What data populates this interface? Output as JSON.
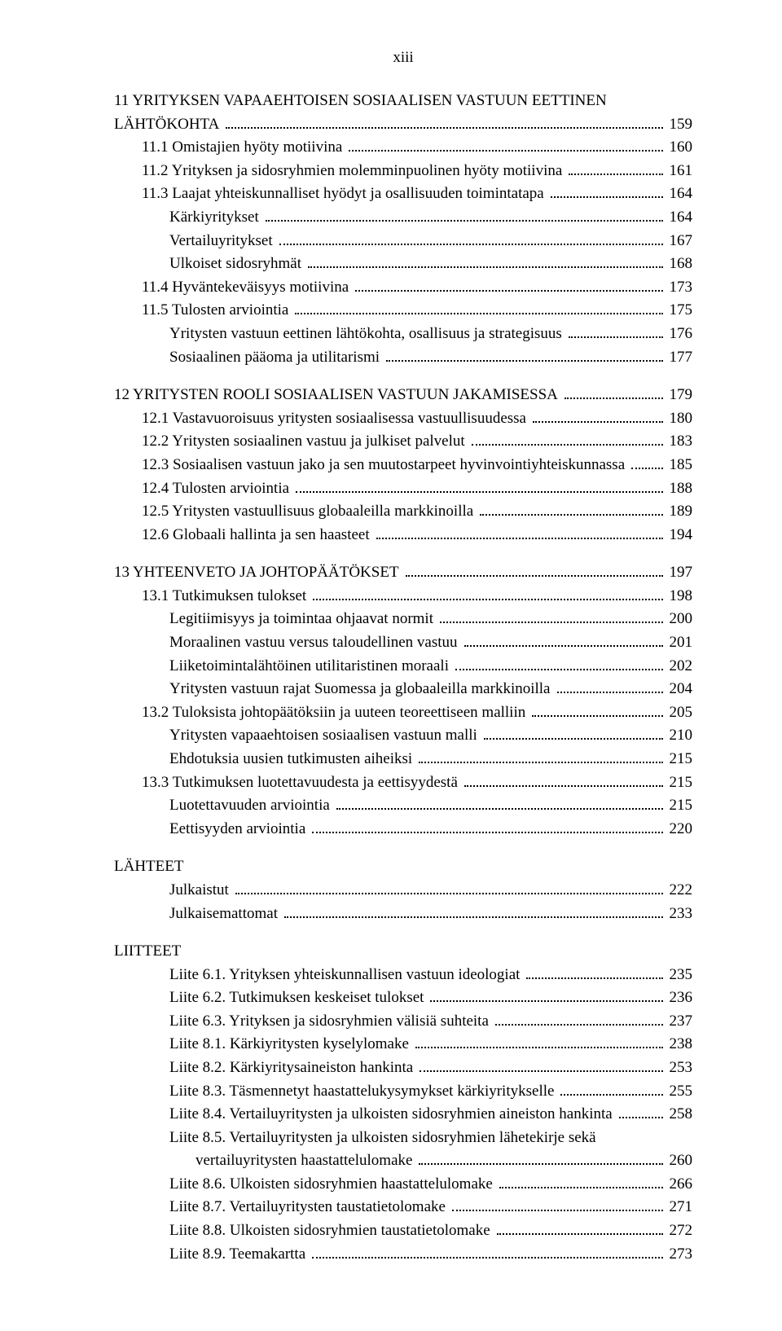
{
  "page_number_label": "xiii",
  "toc": [
    {
      "level": 0,
      "label": "11 YRITYKSEN VAPAAEHTOISEN SOSIAALISEN VASTUUN EETTINEN",
      "page": "",
      "noleader": true,
      "gap_before": false
    },
    {
      "level": 0,
      "label": "     LÄHTÖKOHTA",
      "page": "159",
      "gap_before": false
    },
    {
      "level": 1,
      "label": "11.1 Omistajien hyöty motiivina",
      "page": "160"
    },
    {
      "level": 1,
      "label": "11.2 Yrityksen ja sidosryhmien molemminpuolinen hyöty motiivina",
      "page": "161"
    },
    {
      "level": 1,
      "label": "11.3 Laajat yhteiskunnalliset hyödyt ja osallisuuden toimintatapa",
      "page": "164"
    },
    {
      "level": 2,
      "label": "Kärkiyritykset",
      "page": "164"
    },
    {
      "level": 2,
      "label": "Vertailuyritykset",
      "page": "167"
    },
    {
      "level": 2,
      "label": "Ulkoiset sidosryhmät",
      "page": "168"
    },
    {
      "level": 1,
      "label": "11.4 Hyväntekeväisyys motiivina",
      "page": "173"
    },
    {
      "level": 1,
      "label": "11.5 Tulosten arviointia",
      "page": "175"
    },
    {
      "level": 2,
      "label": "Yritysten vastuun eettinen lähtökohta, osallisuus ja strategisuus",
      "page": "176"
    },
    {
      "level": 2,
      "label": "Sosiaalinen pääoma ja utilitarismi",
      "page": "177"
    },
    {
      "level": 0,
      "label": "12 YRITYSTEN ROOLI SOSIAALISEN VASTUUN JAKAMISESSA",
      "page": "179",
      "gap_before": true
    },
    {
      "level": 1,
      "label": "12.1 Vastavuoroisuus yritysten sosiaalisessa vastuullisuudessa",
      "page": "180"
    },
    {
      "level": 1,
      "label": "12.2 Yritysten sosiaalinen vastuu ja julkiset palvelut",
      "page": "183"
    },
    {
      "level": 1,
      "label": "12.3 Sosiaalisen vastuun jako ja sen muutostarpeet hyvinvointiyhteiskunnassa",
      "page": "185"
    },
    {
      "level": 1,
      "label": "12.4 Tulosten arviointia",
      "page": "188"
    },
    {
      "level": 1,
      "label": "12.5 Yritysten vastuullisuus globaaleilla markkinoilla",
      "page": "189"
    },
    {
      "level": 1,
      "label": "12.6 Globaali hallinta ja sen haasteet",
      "page": "194"
    },
    {
      "level": 0,
      "label": "13 YHTEENVETO JA JOHTOPÄÄTÖKSET",
      "page": "197",
      "gap_before": true
    },
    {
      "level": 1,
      "label": "13.1 Tutkimuksen tulokset",
      "page": "198"
    },
    {
      "level": 2,
      "label": "Legitiimisyys ja toimintaa ohjaavat normit",
      "page": "200"
    },
    {
      "level": 2,
      "label": "Moraalinen vastuu versus taloudellinen vastuu",
      "page": "201"
    },
    {
      "level": 2,
      "label": "Liiketoimintalähtöinen utilitaristinen moraali",
      "page": "202"
    },
    {
      "level": 2,
      "label": "Yritysten vastuun rajat Suomessa ja globaaleilla markkinoilla",
      "page": "204"
    },
    {
      "level": 1,
      "label": "13.2 Tuloksista johtopäätöksiin ja uuteen teoreettiseen malliin",
      "page": "205"
    },
    {
      "level": 2,
      "label": "Yritysten vapaaehtoisen sosiaalisen vastuun malli",
      "page": "210"
    },
    {
      "level": 2,
      "label": "Ehdotuksia uusien tutkimusten aiheiksi",
      "page": "215"
    },
    {
      "level": 1,
      "label": "13.3 Tutkimuksen luotettavuudesta ja eettisyydestä",
      "page": "215"
    },
    {
      "level": 2,
      "label": "Luotettavuuden arviointia",
      "page": "215"
    },
    {
      "level": 2,
      "label": "Eettisyyden arviointia",
      "page": "220"
    },
    {
      "level": 0,
      "label": "LÄHTEET",
      "page": "",
      "noleader": true,
      "gap_before": true
    },
    {
      "level": 2,
      "label": "Julkaistut",
      "page": "222"
    },
    {
      "level": 2,
      "label": "Julkaisemattomat",
      "page": "233"
    },
    {
      "level": 0,
      "label": "LIITTEET",
      "page": "",
      "noleader": true,
      "gap_before": true
    },
    {
      "level": 2,
      "label": "Liite 6.1. Yrityksen yhteiskunnallisen vastuun ideologiat",
      "page": "235"
    },
    {
      "level": 2,
      "label": "Liite 6.2. Tutkimuksen keskeiset tulokset",
      "page": "236"
    },
    {
      "level": 2,
      "label": "Liite 6.3. Yrityksen ja sidosryhmien välisiä suhteita",
      "page": "237"
    },
    {
      "level": 2,
      "label": "Liite 8.1. Kärkiyritysten kyselylomake",
      "page": "238"
    },
    {
      "level": 2,
      "label": "Liite 8.2. Kärkiyritysaineiston hankinta",
      "page": "253"
    },
    {
      "level": 2,
      "label": "Liite 8.3. Täsmennetyt haastattelukysymykset kärkiyritykselle",
      "page": "255"
    },
    {
      "level": 2,
      "label": "Liite 8.4. Vertailuyritysten ja ulkoisten sidosryhmien aineiston hankinta",
      "page": "258"
    },
    {
      "level": 2,
      "label": "Liite 8.5. Vertailuyritysten ja ulkoisten sidosryhmien lähetekirje sekä",
      "page": "",
      "noleader": true
    },
    {
      "level": 3,
      "label": " vertailuyritysten haastattelulomake",
      "page": "260"
    },
    {
      "level": 2,
      "label": "Liite 8.6. Ulkoisten sidosryhmien haastattelulomake",
      "page": "266"
    },
    {
      "level": 2,
      "label": "Liite 8.7. Vertailuyritysten taustatietolomake",
      "page": "271"
    },
    {
      "level": 2,
      "label": "Liite 8.8. Ulkoisten sidosryhmien taustatietolomake",
      "page": "272"
    },
    {
      "level": 2,
      "label": "Liite 8.9. Teemakartta",
      "page": "273"
    }
  ]
}
